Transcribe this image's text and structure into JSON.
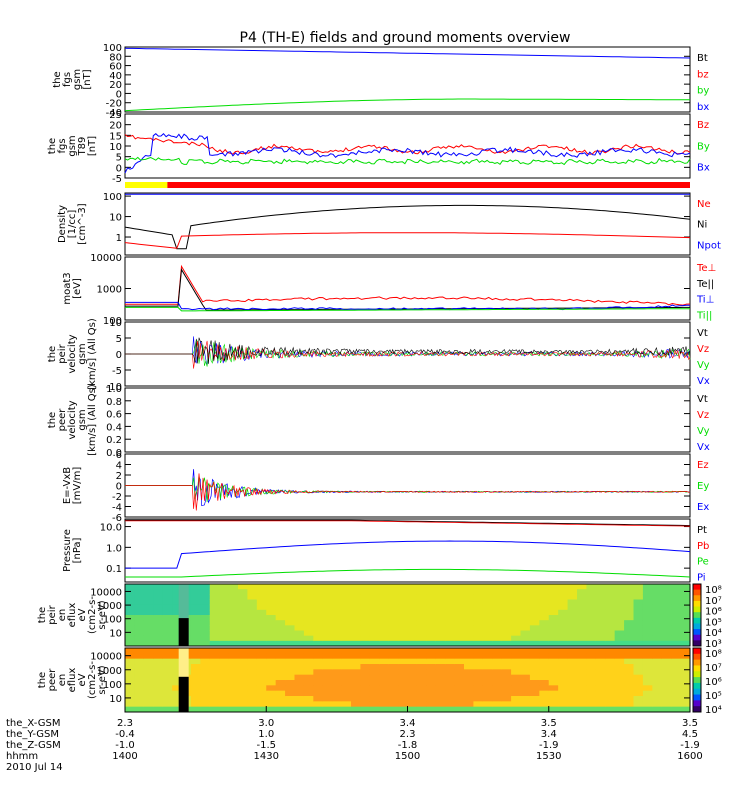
{
  "colors": {
    "black": "#000000",
    "red": "#ff0000",
    "green": "#00dd00",
    "blue": "#0000ff",
    "yellow": "#ffff00"
  },
  "chart_data": {
    "type": "line",
    "title": "P4 (TH-E) fields and ground moments overview",
    "time_axis": {
      "start_hhmm": "1400",
      "end_hhmm": "1600",
      "ticks": [
        "1400",
        "1430",
        "1500",
        "1530",
        "1600"
      ],
      "date": "2010 Jul 14"
    },
    "orbit_rows": [
      {
        "label": "the_X-GSM",
        "values": [
          "2.3",
          "3.0",
          "3.4",
          "3.5",
          "3.5"
        ]
      },
      {
        "label": "the_Y-GSM",
        "values": [
          "-0.4",
          "1.0",
          "2.3",
          "3.4",
          "4.5"
        ]
      },
      {
        "label": "the_Z-GSM",
        "values": [
          "-1.0",
          "-1.5",
          "-1.8",
          "-1.9",
          "-1.9"
        ]
      },
      {
        "label": "hhmm",
        "values": [
          "1400",
          "1430",
          "1500",
          "1530",
          "1600"
        ]
      }
    ],
    "date_label": "2010 Jul 14",
    "status_bar": [
      {
        "from": 0.0,
        "to": 0.075,
        "color": "#ffff00"
      },
      {
        "from": 0.075,
        "to": 1.0,
        "color": "#ff0000"
      }
    ],
    "panels": [
      {
        "ylabel": [
          "the",
          "fgs",
          "gsm",
          "[nT]"
        ],
        "ylim": [
          -40,
          100
        ],
        "ticks": [
          "100",
          "80",
          "60",
          "40",
          "20",
          "0",
          "-20",
          "-40"
        ],
        "legend": [
          {
            "name": "Bt",
            "color": "#000000"
          },
          {
            "name": "bz",
            "color": "#ff0000"
          },
          {
            "name": "by",
            "color": "#00dd00"
          },
          {
            "name": "bx",
            "color": "#0000ff"
          }
        ]
      },
      {
        "ylabel": [
          "the",
          "fgs",
          "gsm",
          "T89",
          "[nT]"
        ],
        "ylim": [
          -5,
          25
        ],
        "ticks": [
          "25",
          "20",
          "15",
          "10",
          "5",
          "0",
          "-5"
        ],
        "legend": [
          {
            "name": "Bz",
            "color": "#ff0000"
          },
          {
            "name": "By",
            "color": "#00dd00"
          },
          {
            "name": "Bx",
            "color": "#0000ff"
          }
        ]
      },
      {
        "ylabel": [
          "Density",
          "[1/cc]",
          "[cm^-3]"
        ],
        "ylim_log": [
          0.1,
          100
        ],
        "ticks": [
          "100",
          "10",
          "1"
        ],
        "legend": [
          {
            "name": "Ne",
            "color": "#ff0000"
          },
          {
            "name": "Ni",
            "color": "#000000"
          },
          {
            "name": "Npot",
            "color": "#0000ff"
          }
        ]
      },
      {
        "ylabel": [
          "moat3",
          "[eV]"
        ],
        "ylim_log": [
          100,
          10000
        ],
        "ticks": [
          "10000",
          "1000",
          "100"
        ],
        "legend": [
          {
            "name": "Te⊥",
            "color": "#ff0000"
          },
          {
            "name": "Te||",
            "color": "#000000"
          },
          {
            "name": "Ti⊥",
            "color": "#0000ff"
          },
          {
            "name": "Ti||",
            "color": "#00dd00"
          }
        ]
      },
      {
        "ylabel": [
          "the",
          "peir",
          "velocity",
          "gsm",
          "[km/s] (All Qs)"
        ],
        "ylim": [
          -15,
          15
        ],
        "ticks": [
          "10",
          "5",
          "0",
          "-5",
          "-10"
        ],
        "legend": [
          {
            "name": "Vt",
            "color": "#000000"
          },
          {
            "name": "Vz",
            "color": "#ff0000"
          },
          {
            "name": "Vy",
            "color": "#00dd00"
          },
          {
            "name": "Vx",
            "color": "#0000ff"
          }
        ]
      },
      {
        "ylabel": [
          "the",
          "peer",
          "velocity",
          "gsm",
          "[km/s] (All Qs)"
        ],
        "ylim": [
          0,
          1
        ],
        "ticks": [
          "1.0",
          "0.8",
          "0.6",
          "0.4",
          "0.2",
          "0.0"
        ],
        "legend": [
          {
            "name": "Vt",
            "color": "#000000"
          },
          {
            "name": "Vz",
            "color": "#ff0000"
          },
          {
            "name": "Vy",
            "color": "#00dd00"
          },
          {
            "name": "Vx",
            "color": "#0000ff"
          }
        ]
      },
      {
        "ylabel": [
          "E=-VxB",
          "[mV/m]"
        ],
        "ylim": [
          -6,
          6
        ],
        "ticks": [
          "6",
          "4",
          "2",
          "0",
          "-2",
          "-4",
          "-6"
        ],
        "legend": [
          {
            "name": "Ez",
            "color": "#ff0000"
          },
          {
            "name": "Ey",
            "color": "#00dd00"
          },
          {
            "name": "Ex",
            "color": "#0000ff"
          }
        ]
      },
      {
        "ylabel": [
          "Pressure",
          "[nPa]"
        ],
        "ylim_log": [
          0.05,
          20
        ],
        "ticks": [
          "10.0",
          "1.0",
          "0.1"
        ],
        "legend": [
          {
            "name": "Pt",
            "color": "#000000"
          },
          {
            "name": "Pb",
            "color": "#ff0000"
          },
          {
            "name": "Pe",
            "color": "#00dd00"
          },
          {
            "name": "Pi",
            "color": "#0000ff"
          }
        ]
      },
      {
        "ylabel": [
          "the",
          "peir",
          "en",
          "eflux",
          "eV",
          "(cm2-s-",
          "sr-eV)"
        ],
        "ylim_log": [
          5,
          30000
        ],
        "ticks": [
          "10000",
          "1000",
          "100",
          "10"
        ],
        "spectrogram": true
      },
      {
        "ylabel": [
          "the",
          "peer",
          "en",
          "eflux",
          "eV",
          "(cm2-s-",
          "sr-eV)"
        ],
        "ylim_log": [
          5,
          30000
        ],
        "ticks": [
          "10000",
          "1000",
          "100",
          "10"
        ],
        "spectrogram": true
      }
    ],
    "colorbar_top": [
      "10⁸",
      "10⁷",
      "10⁶",
      "10⁵",
      "10⁴",
      "10³"
    ],
    "colorbar_bottom": [
      "10⁸",
      "10⁷",
      "10⁶",
      "10⁵",
      "10⁴"
    ]
  }
}
